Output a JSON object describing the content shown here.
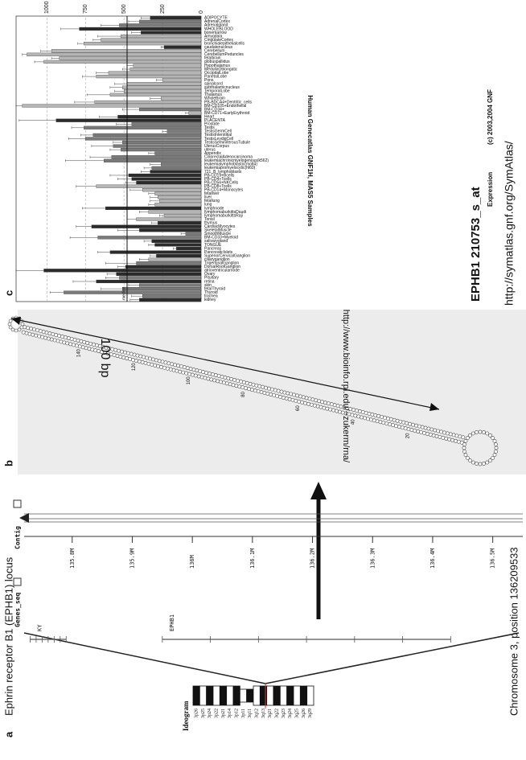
{
  "panels": [
    "a",
    "b",
    "c"
  ],
  "panel_a": {
    "title": "Ephrin receptor B1 (EPHB1) locus",
    "caption": "Chromosome 3, position 136209533",
    "ideogram_label": "Ideogram",
    "bands": [
      "3p26",
      "3p25",
      "3p24",
      "3p22",
      "3p21",
      "3p14",
      "3p12",
      "3p11",
      "3q11",
      "3q12",
      "3q13",
      "3q21",
      "3q22",
      "3q23",
      "3q24",
      "3q25",
      "3q26",
      "3q29"
    ],
    "tracks": [
      "Genes_seq",
      "Contig"
    ],
    "xlim": [
      135.72,
      136.55
    ],
    "xticks": [
      {
        "value": 135.8,
        "label": "135.8M"
      },
      {
        "value": 135.9,
        "label": "135.9M"
      },
      {
        "value": 136.0,
        "label": "136M"
      },
      {
        "value": 136.1,
        "label": "136.1M"
      },
      {
        "value": 136.2,
        "label": "136.2M"
      },
      {
        "value": 136.3,
        "label": "136.3M"
      },
      {
        "value": 136.4,
        "label": "136.4M"
      },
      {
        "value": 136.5,
        "label": "136.5M"
      }
    ],
    "genes": [
      {
        "name": "KY",
        "start": 135.73,
        "end": 135.79
      },
      {
        "name": "EPHB1",
        "start": 135.95,
        "end": 136.43
      }
    ]
  },
  "panel_b": {
    "scale_label": "100 bp",
    "url": "http://www.bioinfo.rpi.edu/~zukerm/rna/",
    "positions": [
      "20",
      "40",
      "60",
      "80",
      "100",
      "120",
      "140"
    ]
  },
  "chart_data": {
    "type": "bar",
    "title": "EPHB1 210753_s_at",
    "y_label": "Expression",
    "copyright": "(c) 2003,2004 GNF",
    "x_label": "Human Genecatlas GNF1H, MAS5 Samples",
    "url": "http://symatlas.gnf.org/SymAtlas/",
    "categories": [
      "ADIPOCYTE",
      "AdrenalCortex",
      "Adrenalgland",
      "WHOLEBLOOD",
      "bonemarrow",
      "Amygdala",
      "CingulateCortex",
      "bronchialepithelialcells",
      "caudatenucleus",
      "Cerebellum",
      "CerebellumPeduncles",
      "fetalbrain",
      "globuspallidus",
      "Hypothalamus",
      "MedullaOblongata",
      "OccipitalLobe",
      "ParietalLobe",
      "Pons",
      "spinalcord",
      "subthalamicnucleus",
      "TemporalLobe",
      "Thalamus",
      "WholeBrain",
      "PB-BDCA4+Dentritic_cells",
      "BM-CD105+Endothelial",
      "BM-CD34+",
      "BM-CD71+EarlyErythroid",
      "Heart",
      "PLACENTA",
      "Prostate",
      "Testis",
      "TestisGermCell",
      "TestisInterstitial",
      "TestisLeydigCell",
      "TestisSeminiferousTubule",
      "UterusCorpus",
      "uterus",
      "Appendix",
      "ColorectalAdenocarcinoma",
      "leukemiachronicmyelogenous(k562)",
      "leukemialymphoblastic(molt4)",
      "leukemiapromyelocytic(hl60)",
      "721_B_lymphoblasts",
      "PB-CD19+Bcells",
      "PB-CD4+Tcells",
      "PB-CD56+NKCells",
      "PB-CD8+Tcells",
      "PB-CD14+Monocytes",
      "fetalliver",
      "liver",
      "fetallung",
      "lung",
      "lymphnode",
      "lymphomaburkittsDaudi",
      "lymphomaburkittsRaji",
      "Tonsil",
      "thymus",
      "CardiacMyocytes",
      "SkeletalMuscle",
      "SmoothMuscle",
      "BM-CD33+Myeloid",
      "salivarygland",
      "TONGUE",
      "Pancreas",
      "PancreaticIslets",
      "SuperiorCervicalGanglion",
      "ciliaryganglion",
      "TrigeminalGanglion",
      "DorsalRootGanglion",
      "atrioventricularnode",
      "Ovary",
      "Pituitary",
      "retina",
      "skin",
      "fetalThyroid",
      "Thyroid",
      "trachea",
      "kidney"
    ],
    "values": [
      330,
      400,
      530,
      790,
      390,
      520,
      650,
      760,
      240,
      970,
      1130,
      920,
      1020,
      440,
      460,
      600,
      680,
      250,
      480,
      510,
      500,
      590,
      260,
      690,
      1160,
      400,
      80,
      540,
      940,
      450,
      760,
      220,
      700,
      750,
      510,
      570,
      520,
      300,
      580,
      630,
      260,
      320,
      330,
      470,
      450,
      420,
      680,
      380,
      300,
      280,
      270,
      300,
      620,
      340,
      240,
      420,
      280,
      710,
      400,
      100,
      670,
      320,
      300,
      160,
      590,
      290,
      340,
      420,
      490,
      1020,
      550,
      530,
      680,
      400,
      510,
      890,
      380,
      400
    ],
    "errors": [
      60,
      70,
      120,
      120,
      60,
      150,
      50,
      40,
      20,
      70,
      30,
      50,
      60,
      40,
      50,
      80,
      90,
      40,
      80,
      80,
      60,
      150,
      70,
      130,
      40,
      110,
      20,
      120,
      240,
      100,
      80,
      30,
      80,
      110,
      60,
      140,
      70,
      40,
      140,
      250,
      70,
      50,
      60,
      120,
      90,
      70,
      130,
      80,
      40,
      50,
      60,
      40,
      150,
      60,
      30,
      60,
      40,
      100,
      140,
      30,
      180,
      50,
      40,
      20,
      80,
      40,
      60,
      200,
      50,
      180,
      60,
      90,
      150,
      70,
      140,
      90,
      70,
      60
    ],
    "colors": [
      "#2b2b2b",
      "#7a7a7a",
      "#7a7a7a",
      "#2b2b2b",
      "#2b2b2b",
      "#b5b5b5",
      "#b5b5b5",
      "#b5b5b5",
      "#2b2b2b",
      "#b5b5b5",
      "#b5b5b5",
      "#b5b5b5",
      "#b5b5b5",
      "#b5b5b5",
      "#b5b5b5",
      "#b5b5b5",
      "#b5b5b5",
      "#b5b5b5",
      "#b5b5b5",
      "#b5b5b5",
      "#b5b5b5",
      "#b5b5b5",
      "#b5b5b5",
      "#b5b5b5",
      "#b5b5b5",
      "#7a7a7a",
      "#b5b5b5",
      "#2b2b2b",
      "#2b2b2b",
      "#7a7a7a",
      "#7a7a7a",
      "#7a7a7a",
      "#7a7a7a",
      "#7a7a7a",
      "#7a7a7a",
      "#7a7a7a",
      "#7a7a7a",
      "#7a7a7a",
      "#7a7a7a",
      "#7a7a7a",
      "#7a7a7a",
      "#7a7a7a",
      "#2b2b2b",
      "#2b2b2b",
      "#2b2b2b",
      "#2b2b2b",
      "#b5b5b5",
      "#b5b5b5",
      "#b5b5b5",
      "#b5b5b5",
      "#b5b5b5",
      "#b5b5b5",
      "#2b2b2b",
      "#b5b5b5",
      "#b5b5b5",
      "#b5b5b5",
      "#2b2b2b",
      "#2b2b2b",
      "#2b2b2b",
      "#7a7a7a",
      "#7a7a7a",
      "#2b2b2b",
      "#2b2b2b",
      "#2b2b2b",
      "#2b2b2b",
      "#2b2b2b",
      "#b5b5b5",
      "#7a7a7a",
      "#2b2b2b",
      "#2b2b2b",
      "#2b2b2b",
      "#7a7a7a",
      "#2b2b2b",
      "#7a7a7a",
      "#7a7a7a",
      "#7a7a7a",
      "#7a7a7a",
      "#2b2b2b"
    ],
    "median": {
      "label": "median",
      "value": 480
    },
    "ylim": [
      0,
      1200
    ],
    "yticks": [
      0,
      250,
      500,
      750,
      1000
    ],
    "grid": true
  }
}
